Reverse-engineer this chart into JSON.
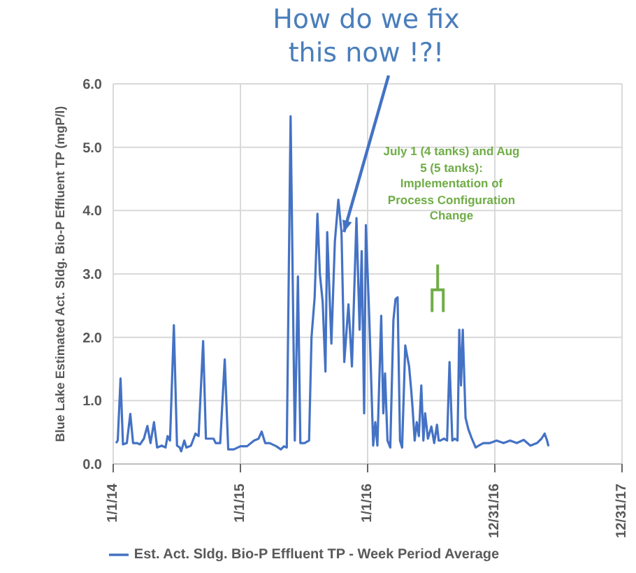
{
  "chart_data": {
    "type": "line",
    "ylabel": "Blue Lake Estimated Act. Sldg. Bio-P Effluent TP (mgP/l)",
    "x": [
      "2014-01-09",
      "2014-01-14",
      "2014-01-22",
      "2014-01-29",
      "2014-02-09",
      "2014-02-19",
      "2014-02-27",
      "2014-03-10",
      "2014-03-19",
      "2014-03-30",
      "2014-04-09",
      "2014-04-18",
      "2014-04-28",
      "2014-05-07",
      "2014-05-20",
      "2014-05-31",
      "2014-06-06",
      "2014-06-13",
      "2014-06-24",
      "2014-07-03",
      "2014-07-11",
      "2014-07-15",
      "2014-07-24",
      "2014-07-30",
      "2014-08-12",
      "2014-08-25",
      "2014-09-03",
      "2014-09-16",
      "2014-09-24",
      "2014-10-07",
      "2014-10-16",
      "2014-10-22",
      "2014-11-04",
      "2014-11-17",
      "2014-11-27",
      "2014-12-13",
      "2015-01-01",
      "2015-01-20",
      "2015-02-09",
      "2015-02-22",
      "2015-03-03",
      "2015-03-13",
      "2015-03-26",
      "2015-04-14",
      "2015-04-27",
      "2015-05-06",
      "2015-05-14",
      "2015-05-25",
      "2015-06-06",
      "2015-06-15",
      "2015-06-22",
      "2015-07-04",
      "2015-07-17",
      "2015-07-24",
      "2015-08-02",
      "2015-08-10",
      "2015-08-17",
      "2015-08-25",
      "2015-09-02",
      "2015-09-07",
      "2015-09-19",
      "2015-09-29",
      "2015-10-09",
      "2015-10-18",
      "2015-10-26",
      "2015-11-07",
      "2015-11-17",
      "2015-11-30",
      "2015-12-09",
      "2015-12-15",
      "2015-12-22",
      "2015-12-27",
      "2016-01-06",
      "2016-01-17",
      "2016-01-23",
      "2016-01-29",
      "2016-02-09",
      "2016-02-15",
      "2016-02-20",
      "2016-02-27",
      "2016-03-06",
      "2016-03-15",
      "2016-03-21",
      "2016-03-27",
      "2016-04-03",
      "2016-04-09",
      "2016-04-18",
      "2016-04-29",
      "2016-05-05",
      "2016-05-09",
      "2016-05-15",
      "2016-05-21",
      "2016-05-27",
      "2016-06-03",
      "2016-06-09",
      "2016-06-14",
      "2016-06-22",
      "2016-07-02",
      "2016-07-10",
      "2016-07-18",
      "2016-07-23",
      "2016-07-28",
      "2016-08-07",
      "2016-08-16",
      "2016-08-23",
      "2016-08-31",
      "2016-09-07",
      "2016-09-15",
      "2016-09-20",
      "2016-09-25",
      "2016-09-30",
      "2016-10-08",
      "2016-10-16",
      "2016-10-26",
      "2016-11-06",
      "2016-11-15",
      "2016-11-28",
      "2016-12-17",
      "2017-01-05",
      "2017-01-25",
      "2017-02-13",
      "2017-03-04",
      "2017-03-24",
      "2017-04-12",
      "2017-05-01",
      "2017-05-14",
      "2017-05-23",
      "2017-05-30",
      "2017-06-03"
    ],
    "series": [
      {
        "name": "Est. Act. Sldg. Bio-P Effluent TP - Week Period Average",
        "color": "#4472c4",
        "values": [
          0.33,
          0.37,
          1.35,
          0.31,
          0.33,
          0.79,
          0.33,
          0.33,
          0.31,
          0.4,
          0.6,
          0.33,
          0.66,
          0.26,
          0.29,
          0.26,
          0.44,
          0.37,
          2.19,
          0.29,
          0.26,
          0.2,
          0.37,
          0.26,
          0.29,
          0.48,
          0.44,
          1.94,
          0.4,
          0.4,
          0.4,
          0.33,
          0.33,
          1.65,
          0.23,
          0.23,
          0.28,
          0.28,
          0.37,
          0.4,
          0.51,
          0.33,
          0.33,
          0.28,
          0.23,
          0.28,
          0.26,
          5.49,
          0.37,
          2.96,
          0.33,
          0.33,
          0.37,
          2.0,
          2.63,
          3.95,
          3.0,
          2.56,
          1.46,
          3.66,
          1.9,
          3.51,
          4.17,
          3.66,
          1.61,
          2.52,
          1.54,
          3.88,
          2.12,
          3.36,
          0.8,
          3.77,
          2.27,
          0.29,
          0.66,
          0.29,
          2.34,
          0.8,
          1.43,
          0.37,
          0.26,
          2.27,
          2.6,
          2.63,
          0.37,
          0.26,
          1.87,
          1.54,
          1.17,
          0.88,
          0.37,
          0.66,
          0.44,
          1.24,
          0.37,
          0.8,
          0.4,
          0.59,
          0.33,
          0.62,
          0.37,
          0.37,
          0.4,
          0.37,
          1.61,
          0.37,
          0.4,
          0.37,
          2.12,
          1.24,
          2.12,
          0.73,
          0.55,
          0.4,
          0.26,
          0.29,
          0.33,
          0.33,
          0.37,
          0.33,
          0.37,
          0.33,
          0.38,
          0.29,
          0.33,
          0.4,
          0.48,
          0.37,
          0.28
        ]
      }
    ],
    "xlim": [
      "2014-01-01",
      "2017-12-31"
    ],
    "xticks": [
      {
        "value": "2014-01-01",
        "label": "1/1/14"
      },
      {
        "value": "2015-01-01",
        "label": "1/1/15"
      },
      {
        "value": "2016-01-01",
        "label": "1/1/16"
      },
      {
        "value": "2016-12-31",
        "label": "12/31/16"
      },
      {
        "value": "2017-12-31",
        "label": "12/31/17"
      }
    ],
    "ylim": [
      0,
      6
    ],
    "yticks": [
      {
        "value": 0,
        "label": "0.0"
      },
      {
        "value": 1,
        "label": "1.0"
      },
      {
        "value": 2,
        "label": "2.0"
      },
      {
        "value": 3,
        "label": "3.0"
      },
      {
        "value": 4,
        "label": "4.0"
      },
      {
        "value": 5,
        "label": "5.0"
      },
      {
        "value": 6,
        "label": "6.0"
      }
    ],
    "grid": true,
    "legend": "bottom",
    "marker": "none",
    "line_style": "solid",
    "annotations": [
      {
        "text": "How do we fix this now !?!",
        "x": "2015-10-25",
        "y": 3.66
      },
      "July 1 (4 tanks) and Aug 5 (5 tanks): Implementation of Process Configuration Change"
    ]
  }
}
